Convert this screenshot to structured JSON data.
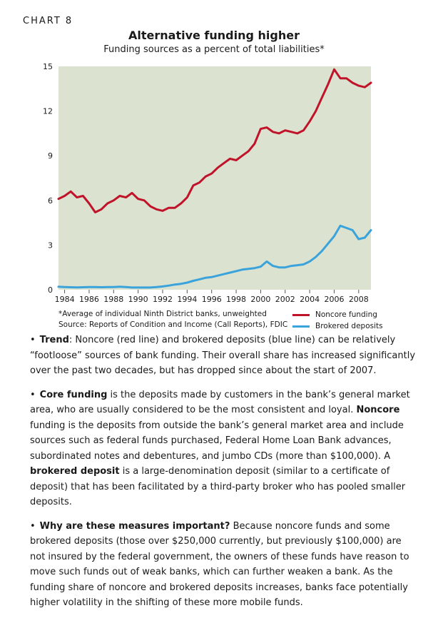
{
  "header": {
    "chart_label": "CHART 8",
    "title": "Alternative funding higher",
    "subtitle": "Funding sources as a percent of total liabilities*"
  },
  "notes": {
    "line1": "*Average of individual Ninth District banks, unweighted",
    "line2": "Source: Reports of Condition and Income (Call Reports), FDIC"
  },
  "legend": {
    "noncore": "Noncore funding",
    "brokered": "Brokered deposits"
  },
  "colors": {
    "plot_bg": "#dbe2cf",
    "noncore": "#c0132a",
    "brokered": "#3ba3db"
  },
  "chart_data": {
    "type": "line",
    "title": "Alternative funding higher",
    "subtitle": "Funding sources as a percent of total liabilities*",
    "xlabel": "",
    "ylabel": "",
    "xlim": [
      1983.5,
      2009.0
    ],
    "ylim": [
      0,
      15
    ],
    "yticks": [
      0,
      3,
      6,
      9,
      12,
      15
    ],
    "xticks": [
      1984,
      1986,
      1988,
      1990,
      1992,
      1994,
      1996,
      1998,
      2000,
      2002,
      2004,
      2006,
      2008
    ],
    "grid": false,
    "legend_position": "below-right",
    "series": [
      {
        "name": "Noncore funding",
        "x": [
          1983.5,
          1984.0,
          1984.5,
          1985.0,
          1985.5,
          1986.0,
          1986.5,
          1987.0,
          1987.5,
          1988.0,
          1988.5,
          1989.0,
          1989.5,
          1990.0,
          1990.5,
          1991.0,
          1991.5,
          1992.0,
          1992.5,
          1993.0,
          1993.5,
          1994.0,
          1994.5,
          1995.0,
          1995.5,
          1996.0,
          1996.5,
          1997.0,
          1997.5,
          1998.0,
          1998.5,
          1999.0,
          1999.5,
          2000.0,
          2000.5,
          2001.0,
          2001.5,
          2002.0,
          2002.5,
          2003.0,
          2003.5,
          2004.0,
          2004.5,
          2005.0,
          2005.5,
          2006.0,
          2006.5,
          2007.0,
          2007.5,
          2008.0,
          2008.5,
          2009.0
        ],
        "values": [
          6.1,
          6.3,
          6.6,
          6.2,
          6.3,
          5.8,
          5.2,
          5.4,
          5.8,
          6.0,
          6.3,
          6.2,
          6.5,
          6.1,
          6.0,
          5.6,
          5.4,
          5.3,
          5.5,
          5.5,
          5.8,
          6.2,
          7.0,
          7.2,
          7.6,
          7.8,
          8.2,
          8.5,
          8.8,
          8.7,
          9.0,
          9.3,
          9.8,
          10.8,
          10.9,
          10.6,
          10.5,
          10.7,
          10.6,
          10.5,
          10.7,
          11.3,
          12.0,
          12.9,
          13.8,
          14.8,
          14.2,
          14.2,
          13.9,
          13.7,
          13.6,
          13.9
        ]
      },
      {
        "name": "Brokered deposits",
        "x": [
          1983.5,
          1984.0,
          1984.5,
          1985.0,
          1985.5,
          1986.0,
          1986.5,
          1987.0,
          1987.5,
          1988.0,
          1988.5,
          1989.0,
          1989.5,
          1990.0,
          1990.5,
          1991.0,
          1991.5,
          1992.0,
          1992.5,
          1993.0,
          1993.5,
          1994.0,
          1994.5,
          1995.0,
          1995.5,
          1996.0,
          1996.5,
          1997.0,
          1997.5,
          1998.0,
          1998.5,
          1999.0,
          1999.5,
          2000.0,
          2000.5,
          2001.0,
          2001.5,
          2002.0,
          2002.5,
          2003.0,
          2003.5,
          2004.0,
          2004.5,
          2005.0,
          2005.5,
          2006.0,
          2006.5,
          2007.0,
          2007.5,
          2008.0,
          2008.5,
          2009.0
        ],
        "values": [
          0.2,
          0.18,
          0.17,
          0.16,
          0.17,
          0.18,
          0.18,
          0.17,
          0.18,
          0.18,
          0.2,
          0.18,
          0.15,
          0.15,
          0.15,
          0.15,
          0.18,
          0.22,
          0.28,
          0.35,
          0.4,
          0.48,
          0.6,
          0.7,
          0.8,
          0.85,
          0.95,
          1.05,
          1.15,
          1.25,
          1.35,
          1.4,
          1.45,
          1.55,
          1.9,
          1.6,
          1.5,
          1.5,
          1.6,
          1.65,
          1.7,
          1.9,
          2.2,
          2.6,
          3.1,
          3.6,
          4.3,
          4.15,
          4.0,
          3.4,
          3.5,
          4.0
        ]
      }
    ]
  },
  "body": {
    "p1_label": "Trend",
    "p1_text": ": Noncore (red line) and brokered deposits (blue line) can be relatively “footloose” sources of bank funding. Their overall share has increased significantly over the past two decades, but has dropped since about the start of 2007.",
    "p2_label1": "Core funding",
    "p2_text1": " is the deposits made by customers in the bank’s general market area, who are usually considered to be the most consistent and loyal. ",
    "p2_label2": "Noncore",
    "p2_text2": " funding is the deposits from outside the bank’s general market area and include sources such as federal funds purchased, Federal Home Loan Bank  advances, subordinated notes and debentures, and jumbo CDs (more than $100,000). A ",
    "p2_label3": "brokered deposit",
    "p2_text3": " is a large-denomination deposit (similar to a certificate of deposit) that has been facilitated by a third-party broker who has pooled smaller deposits.",
    "p3_label": "Why are these measures important?",
    "p3_text": " Because noncore funds and some brokered deposits (those over $250,000 currently, but previously $100,000) are not insured by the federal government, the owners of these funds have reason to move such funds out of weak banks, which can further weaken a bank. As the funding share of noncore and brokered deposits increases, banks face potentially higher volatility in the shifting of these more mobile funds."
  }
}
